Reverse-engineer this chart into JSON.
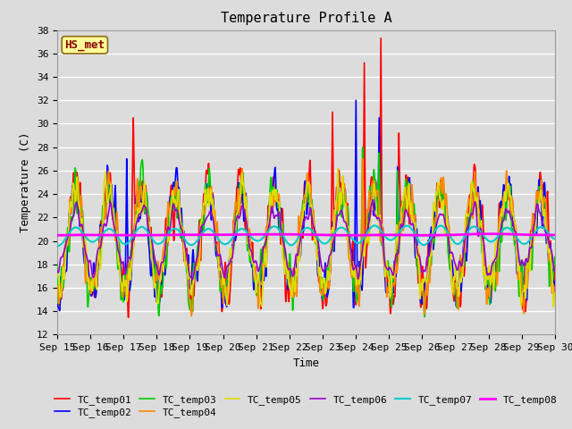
{
  "title": "Temperature Profile A",
  "xlabel": "Time",
  "ylabel": "Temperature (C)",
  "ylim": [
    12,
    38
  ],
  "yticks": [
    12,
    14,
    16,
    18,
    20,
    22,
    24,
    26,
    28,
    30,
    32,
    34,
    36,
    38
  ],
  "xtick_labels": [
    "Sep 15",
    "Sep 16",
    "Sep 17",
    "Sep 18",
    "Sep 19",
    "Sep 20",
    "Sep 21",
    "Sep 22",
    "Sep 23",
    "Sep 24",
    "Sep 25",
    "Sep 26",
    "Sep 27",
    "Sep 28",
    "Sep 29",
    "Sep 30"
  ],
  "annotation_text": "HS_met",
  "annotation_color": "#8B0000",
  "annotation_bg": "#FFFF99",
  "legend_entries": [
    "TC_temp01",
    "TC_temp02",
    "TC_temp03",
    "TC_temp04",
    "TC_temp05",
    "TC_temp06",
    "TC_temp07",
    "TC_temp08"
  ],
  "line_colors": [
    "#FF0000",
    "#0000FF",
    "#00CC00",
    "#FF8800",
    "#DDDD00",
    "#9900CC",
    "#00CCCC",
    "#FF00FF"
  ],
  "line_widths": [
    1.2,
    1.2,
    1.2,
    1.2,
    1.2,
    1.2,
    1.5,
    2.0
  ],
  "plot_bg": "#DCDCDC",
  "grid_color": "#FFFFFF",
  "title_fontsize": 11,
  "axis_fontsize": 9,
  "tick_fontsize": 8
}
